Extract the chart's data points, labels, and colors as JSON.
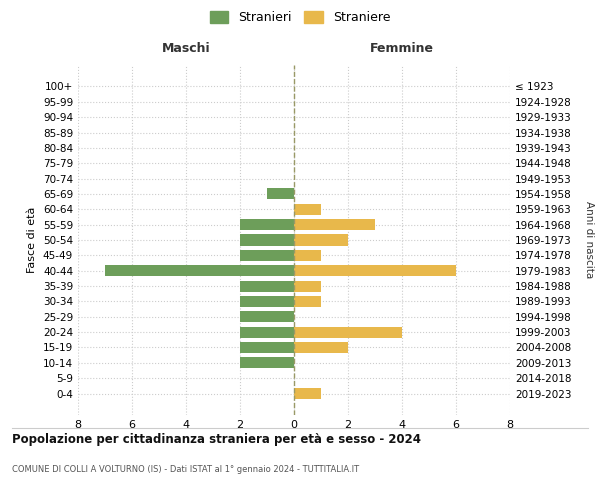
{
  "age_groups": [
    "100+",
    "95-99",
    "90-94",
    "85-89",
    "80-84",
    "75-79",
    "70-74",
    "65-69",
    "60-64",
    "55-59",
    "50-54",
    "45-49",
    "40-44",
    "35-39",
    "30-34",
    "25-29",
    "20-24",
    "15-19",
    "10-14",
    "5-9",
    "0-4"
  ],
  "birth_years": [
    "≤ 1923",
    "1924-1928",
    "1929-1933",
    "1934-1938",
    "1939-1943",
    "1944-1948",
    "1949-1953",
    "1954-1958",
    "1959-1963",
    "1964-1968",
    "1969-1973",
    "1974-1978",
    "1979-1983",
    "1984-1988",
    "1989-1993",
    "1994-1998",
    "1999-2003",
    "2004-2008",
    "2009-2013",
    "2014-2018",
    "2019-2023"
  ],
  "maschi": [
    0,
    0,
    0,
    0,
    0,
    0,
    0,
    1,
    0,
    2,
    2,
    2,
    7,
    2,
    2,
    2,
    2,
    2,
    2,
    0,
    0
  ],
  "femmine": [
    0,
    0,
    0,
    0,
    0,
    0,
    0,
    0,
    1,
    3,
    2,
    1,
    6,
    1,
    1,
    0,
    4,
    2,
    0,
    0,
    1
  ],
  "color_maschi": "#6d9e5a",
  "color_femmine": "#e8b84b",
  "title": "Popolazione per cittadinanza straniera per età e sesso - 2024",
  "subtitle": "COMUNE DI COLLI A VOLTURNO (IS) - Dati ISTAT al 1° gennaio 2024 - TUTTITALIA.IT",
  "label_maschi": "Maschi",
  "label_femmine": "Femmine",
  "ylabel_left": "Fasce di età",
  "ylabel_right": "Anni di nascita",
  "legend_maschi": "Stranieri",
  "legend_femmine": "Straniere",
  "xlim": 8,
  "background_color": "#ffffff",
  "grid_color": "#cccccc"
}
